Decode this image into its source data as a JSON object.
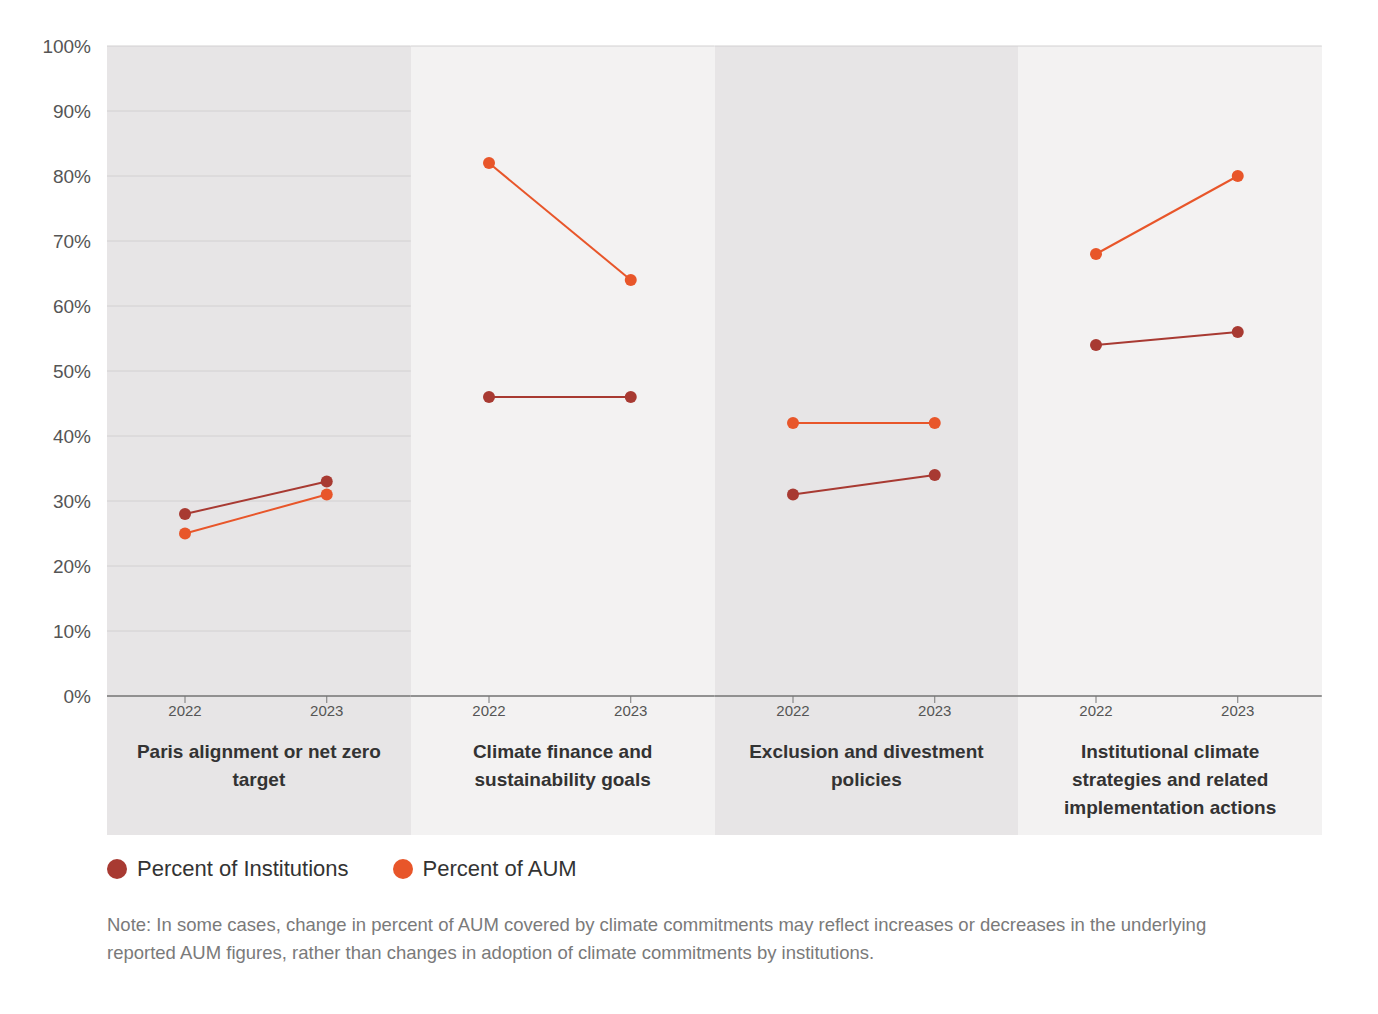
{
  "chart_data": [
    {
      "type": "line",
      "title": "Paris alignment or net zero target",
      "categories": [
        "2022",
        "2023"
      ],
      "series": [
        {
          "name": "Percent of Institutions",
          "color": "#a83a32",
          "values": [
            28,
            33
          ],
          "marker": "circle"
        },
        {
          "name": "Percent of AUM",
          "color": "#e8562a",
          "values": [
            25,
            31
          ],
          "marker": "circle"
        }
      ],
      "ylim": [
        0,
        100
      ],
      "yticks": [
        {
          "value": 0,
          "label": "0%"
        },
        {
          "value": 10,
          "label": "10%"
        },
        {
          "value": 20,
          "label": "20%"
        },
        {
          "value": 30,
          "label": "30%"
        },
        {
          "value": 40,
          "label": "40%"
        },
        {
          "value": 50,
          "label": "50%"
        },
        {
          "value": 60,
          "label": "60%"
        },
        {
          "value": 70,
          "label": "70%"
        },
        {
          "value": 80,
          "label": "80%"
        },
        {
          "value": 90,
          "label": "90%"
        },
        {
          "value": 100,
          "label": "100%"
        }
      ],
      "grid": true,
      "legend": "bottom"
    },
    {
      "type": "line",
      "title": "Climate finance and sustainability goals",
      "categories": [
        "2022",
        "2023"
      ],
      "series": [
        {
          "name": "Percent of Institutions",
          "color": "#a83a32",
          "values": [
            46,
            46
          ],
          "marker": "circle"
        },
        {
          "name": "Percent of AUM",
          "color": "#e8562a",
          "values": [
            82,
            64
          ],
          "marker": "circle"
        }
      ],
      "ylim": [
        0,
        100
      ],
      "yticks": [
        {
          "value": 0,
          "label": "0%"
        },
        {
          "value": 10,
          "label": "10%"
        },
        {
          "value": 20,
          "label": "20%"
        },
        {
          "value": 30,
          "label": "30%"
        },
        {
          "value": 40,
          "label": "40%"
        },
        {
          "value": 50,
          "label": "50%"
        },
        {
          "value": 60,
          "label": "60%"
        },
        {
          "value": 70,
          "label": "70%"
        },
        {
          "value": 80,
          "label": "80%"
        },
        {
          "value": 90,
          "label": "90%"
        },
        {
          "value": 100,
          "label": "100%"
        }
      ],
      "grid": true,
      "tick_labels": "x"
    },
    {
      "type": "line",
      "title": "Exclusion and divestment policies",
      "categories": [
        "2022",
        "2023"
      ],
      "series": [
        {
          "name": "Percent of Institutions",
          "color": "#a83a32",
          "values": [
            31,
            34
          ],
          "marker": "circle"
        },
        {
          "name": "Percent of AUM",
          "color": "#e8562a",
          "values": [
            42,
            42
          ],
          "marker": "circle"
        }
      ],
      "ylim": [
        0,
        100
      ],
      "yticks": [
        {
          "value": 0,
          "label": "0%"
        },
        {
          "value": 10,
          "label": "10%"
        },
        {
          "value": 20,
          "label": "20%"
        },
        {
          "value": 30,
          "label": "30%"
        },
        {
          "value": 40,
          "label": "40%"
        },
        {
          "value": 50,
          "label": "50%"
        },
        {
          "value": 60,
          "label": "60%"
        },
        {
          "value": 70,
          "label": "70%"
        },
        {
          "value": 80,
          "label": "80%"
        },
        {
          "value": 90,
          "label": "90%"
        },
        {
          "value": 100,
          "label": "100%"
        }
      ],
      "grid": true,
      "tick_labels": "x"
    },
    {
      "type": "line",
      "title": "Institutional climate strategies and related implementation actions",
      "categories": [
        "2022",
        "2023"
      ],
      "series": [
        {
          "name": "Percent of Institutions",
          "color": "#a83a32",
          "values": [
            54,
            56
          ],
          "marker": "circle"
        },
        {
          "name": "Percent of AUM",
          "color": "#e8562a",
          "values": [
            68,
            80
          ],
          "marker": "circle"
        }
      ],
      "ylim": [
        0,
        100
      ],
      "yticks": [
        {
          "value": 0,
          "label": "0%"
        },
        {
          "value": 10,
          "label": "10%"
        },
        {
          "value": 20,
          "label": "20%"
        },
        {
          "value": 30,
          "label": "30%"
        },
        {
          "value": 40,
          "label": "40%"
        },
        {
          "value": 50,
          "label": "50%"
        },
        {
          "value": 60,
          "label": "60%"
        },
        {
          "value": 70,
          "label": "70%"
        },
        {
          "value": 80,
          "label": "80%"
        },
        {
          "value": 90,
          "label": "90%"
        },
        {
          "value": 100,
          "label": "100%"
        }
      ],
      "grid": true,
      "tick_labels": "x"
    }
  ],
  "note": "Note: In some cases, change in percent of AUM covered by climate commitments may reflect increases or decreases in the underlying reported AUM figures, rather than changes in adoption of climate commitments by institutions."
}
